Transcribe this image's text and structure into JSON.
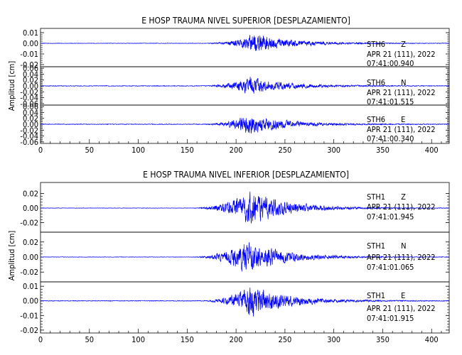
{
  "figure": {
    "groups": [
      {
        "title": "E HOSP TRAUMA NIVEL SUPERIOR [DESPLAZAMIENTO]",
        "ylabel": "Amplitud [cm]",
        "xticks": [
          "0",
          "50",
          "100",
          "150",
          "200",
          "250",
          "300",
          "350",
          "400"
        ],
        "panels": [
          {
            "station": "STH6",
            "component": "Z",
            "date": "APR 21 (111), 2022",
            "time": "07:41:00.940",
            "yticks": [
              "0.01",
              "0.00",
              "-0.01",
              "-0.02"
            ]
          },
          {
            "station": "STH6",
            "component": "N",
            "date": "APR 21 (111), 2022",
            "time": "07:41:01.515",
            "yticks": [
              "0.06",
              "0.04",
              "0.02",
              "0.00",
              "-0.02",
              "-0.04",
              "-0.06"
            ]
          },
          {
            "station": "STH6",
            "component": "E",
            "date": "APR 21 (111), 2022",
            "time": "07:41:00.340",
            "yticks": [
              "0.06",
              "0.04",
              "0.02",
              "0.00",
              "-0.02",
              "-0.04",
              "-0.06"
            ]
          }
        ]
      },
      {
        "title": "E HOSP TRAUMA NIVEL INFERIOR [DESPLAZAMIENTO]",
        "ylabel": "Amplitud [cm]",
        "xticks": [
          "0",
          "50",
          "100",
          "150",
          "200",
          "250",
          "300",
          "350",
          "400"
        ],
        "panels": [
          {
            "station": "STH1",
            "component": "Z",
            "date": "APR 21 (111), 2022",
            "time": "07:41:01.945",
            "yticks": [
              "0.02",
              "0.00",
              "-0.02"
            ]
          },
          {
            "station": "STH1",
            "component": "N",
            "date": "APR 21 (111), 2022",
            "time": "07:41:01.065",
            "yticks": [
              "0.02",
              "0.00",
              "-0.02"
            ]
          },
          {
            "station": "STH1",
            "component": "E",
            "date": "APR 21 (111), 2022",
            "time": "07:41:01.915",
            "yticks": [
              "0.01",
              "0.00",
              "-0.01",
              "-0.02"
            ]
          }
        ]
      }
    ]
  },
  "chart_data": [
    {
      "type": "line",
      "title": "E HOSP TRAUMA NIVEL SUPERIOR [DESPLAZAMIENTO]",
      "xlabel": "",
      "ylabel": "Amplitud [cm]",
      "xlim": [
        0,
        418
      ],
      "line_color": "#0000ff",
      "grid": false,
      "series": [
        {
          "name": "STH6 Z",
          "ylim": [
            -0.022,
            0.014
          ],
          "envelope": {
            "noise": 0.0003,
            "onset": 165,
            "peak_time": 218,
            "peak_amplitude": 0.011,
            "decay_end": 418
          }
        },
        {
          "name": "STH6 N",
          "ylim": [
            -0.065,
            0.065
          ],
          "envelope": {
            "noise": 0.0015,
            "onset": 160,
            "peak_time": 215,
            "peak_amplitude": 0.035,
            "decay_end": 418
          }
        },
        {
          "name": "STH6 E",
          "ylim": [
            -0.065,
            0.065
          ],
          "envelope": {
            "noise": 0.0015,
            "onset": 160,
            "peak_time": 215,
            "peak_amplitude": 0.04,
            "decay_end": 418
          }
        }
      ]
    },
    {
      "type": "line",
      "title": "E HOSP TRAUMA NIVEL INFERIOR [DESPLAZAMIENTO]",
      "xlabel": "",
      "ylabel": "Amplitud [cm]",
      "xlim": [
        0,
        418
      ],
      "line_color": "#0000ff",
      "grid": false,
      "series": [
        {
          "name": "STH1 Z",
          "ylim": [
            -0.033,
            0.035
          ],
          "envelope": {
            "noise": 0.0004,
            "onset": 150,
            "peak_time": 215,
            "peak_amplitude": 0.028,
            "decay_end": 418
          }
        },
        {
          "name": "STH1 N",
          "ylim": [
            -0.033,
            0.033
          ],
          "envelope": {
            "noise": 0.0004,
            "onset": 150,
            "peak_time": 210,
            "peak_amplitude": 0.026,
            "decay_end": 418
          }
        },
        {
          "name": "STH1 E",
          "ylim": [
            -0.022,
            0.013
          ],
          "envelope": {
            "noise": 0.0003,
            "onset": 160,
            "peak_time": 215,
            "peak_amplitude": 0.013,
            "decay_end": 418
          }
        }
      ]
    }
  ]
}
